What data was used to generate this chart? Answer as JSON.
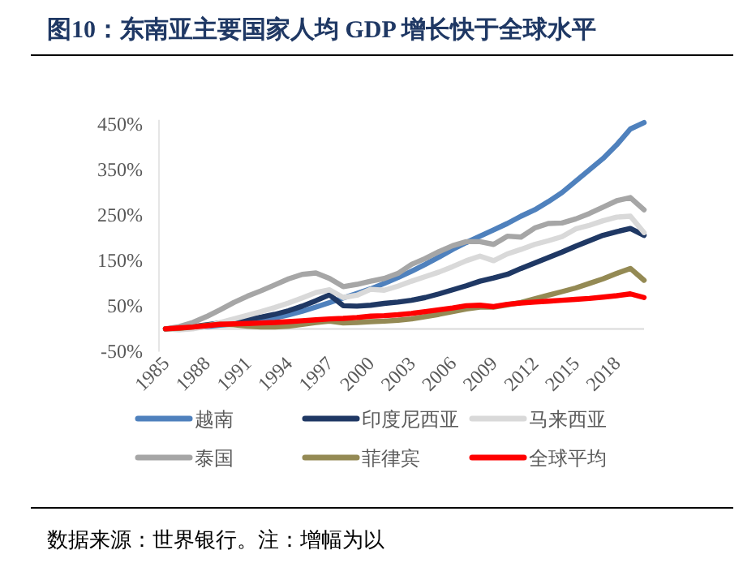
{
  "chart_data": {
    "type": "line",
    "title": "图10：东南亚主要国家人均 GDP 增长快于全球水平",
    "annotations": [
      "数据来源：世界银行。注：增幅为以"
    ],
    "x": [
      1985,
      1986,
      1987,
      1988,
      1989,
      1990,
      1991,
      1992,
      1993,
      1994,
      1995,
      1996,
      1997,
      1998,
      1999,
      2000,
      2001,
      2002,
      2003,
      2004,
      2005,
      2006,
      2007,
      2008,
      2009,
      2010,
      2011,
      2012,
      2013,
      2014,
      2015,
      2016,
      2017,
      2018,
      2019,
      2020
    ],
    "xlim": [
      1985,
      2020
    ],
    "xticks": [
      1985,
      1988,
      1991,
      1994,
      1997,
      2000,
      2003,
      2006,
      2009,
      2012,
      2015,
      2018
    ],
    "ylim": [
      -50,
      460
    ],
    "yticks": [
      {
        "value": -50,
        "label": "-50%"
      },
      {
        "value": 50,
        "label": "50%"
      },
      {
        "value": 150,
        "label": "150%"
      },
      {
        "value": 250,
        "label": "250%"
      },
      {
        "value": 350,
        "label": "350%"
      },
      {
        "value": 450,
        "label": "450%"
      }
    ],
    "legend": "bottom",
    "series": [
      {
        "name": "越南",
        "color": "#4f81bd",
        "values": [
          0,
          1,
          3,
          5,
          8,
          11,
          15,
          19,
          24,
          31,
          39,
          48,
          58,
          68,
          78,
          88,
          100,
          113,
          127,
          142,
          158,
          175,
          190,
          204,
          218,
          232,
          248,
          262,
          280,
          300,
          325,
          350,
          375,
          405,
          440,
          454
        ]
      },
      {
        "name": "印度尼西亚",
        "color": "#1f3864",
        "values": [
          0,
          2,
          5,
          9,
          13,
          17,
          21,
          26,
          32,
          40,
          50,
          62,
          75,
          51,
          50,
          52,
          56,
          59,
          63,
          69,
          77,
          86,
          95,
          105,
          112,
          120,
          133,
          145,
          157,
          169,
          182,
          194,
          206,
          214,
          221,
          206
        ]
      },
      {
        "name": "马来西亚",
        "color": "#d9d9d9",
        "values": [
          0,
          -2,
          0,
          6,
          14,
          22,
          30,
          38,
          47,
          57,
          68,
          80,
          86,
          69,
          74,
          87,
          85,
          94,
          105,
          115,
          125,
          137,
          150,
          160,
          150,
          165,
          175,
          186,
          194,
          203,
          220,
          228,
          238,
          246,
          248,
          212
        ]
      },
      {
        "name": "泰国",
        "color": "#a6a6a6",
        "values": [
          0,
          5,
          14,
          27,
          42,
          58,
          72,
          84,
          97,
          110,
          120,
          123,
          111,
          93,
          98,
          105,
          111,
          122,
          142,
          155,
          170,
          183,
          192,
          192,
          186,
          204,
          202,
          222,
          232,
          233,
          242,
          254,
          268,
          282,
          289,
          262
        ]
      },
      {
        "name": "菲律宾",
        "color": "#948a54",
        "values": [
          0,
          1,
          4,
          8,
          10,
          9,
          6,
          4,
          4,
          6,
          10,
          14,
          17,
          13,
          14,
          16,
          17,
          19,
          22,
          27,
          32,
          38,
          44,
          48,
          48,
          53,
          58,
          66,
          74,
          82,
          90,
          100,
          110,
          122,
          133,
          107
        ]
      },
      {
        "name": "全球平均",
        "color": "#ff0000",
        "values": [
          0,
          2,
          4,
          7,
          10,
          11,
          12,
          13,
          14,
          16,
          18,
          20,
          22,
          23,
          25,
          28,
          29,
          31,
          34,
          38,
          42,
          46,
          51,
          52,
          49,
          54,
          57,
          59,
          61,
          63,
          65,
          67,
          70,
          73,
          77,
          69
        ]
      }
    ]
  }
}
